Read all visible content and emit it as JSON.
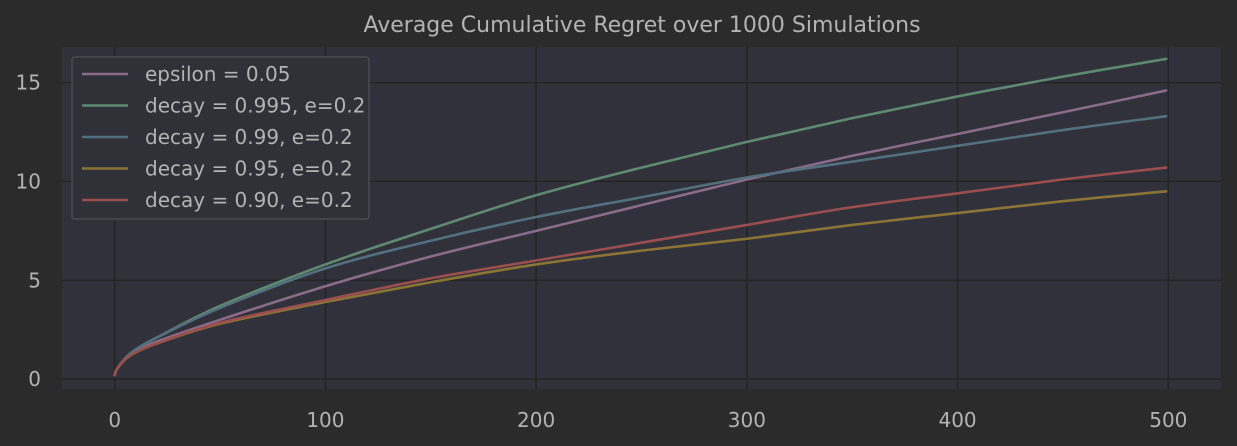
{
  "chart_data": {
    "type": "line",
    "title": "Average Cumulative Regret over 1000 Simulations",
    "xlabel": "",
    "ylabel": "",
    "xlim": [
      -25,
      525
    ],
    "ylim": [
      -0.5,
      16.8
    ],
    "xticks": [
      0,
      100,
      200,
      300,
      400,
      500
    ],
    "yticks": [
      0,
      5,
      10,
      15
    ],
    "grid": true,
    "legend_position": "top-left",
    "colors": {
      "background": "#2b2b2b",
      "plot_area": "#30313a",
      "grid": "#242424",
      "text": "#b3b3b3"
    },
    "x": [
      0,
      1,
      5,
      10,
      20,
      50,
      100,
      150,
      200,
      250,
      300,
      350,
      400,
      450,
      499
    ],
    "series": [
      {
        "name": "epsilon = 0.05",
        "color": "#8b6b8a",
        "values": [
          0.2,
          0.5,
          1.0,
          1.4,
          1.9,
          3.0,
          4.7,
          6.2,
          7.5,
          8.8,
          10.1,
          11.3,
          12.4,
          13.5,
          14.6
        ]
      },
      {
        "name": "decay = 0.995, e=0.2",
        "color": "#5e8a72",
        "values": [
          0.2,
          0.5,
          1.05,
          1.5,
          2.1,
          3.7,
          5.8,
          7.6,
          9.3,
          10.7,
          12.0,
          13.2,
          14.3,
          15.3,
          16.2
        ]
      },
      {
        "name": "decay = 0.99, e=0.2",
        "color": "#52707f",
        "values": [
          0.2,
          0.5,
          1.05,
          1.5,
          2.1,
          3.6,
          5.6,
          7.0,
          8.2,
          9.2,
          10.2,
          11.0,
          11.8,
          12.6,
          13.3
        ]
      },
      {
        "name": "decay = 0.95, e=0.2",
        "color": "#8c7435",
        "values": [
          0.2,
          0.5,
          1.0,
          1.35,
          1.8,
          2.8,
          3.9,
          4.9,
          5.8,
          6.5,
          7.1,
          7.8,
          8.4,
          9.0,
          9.5
        ]
      },
      {
        "name": "decay = 0.90, e=0.2",
        "color": "#9a4e4e",
        "values": [
          0.2,
          0.5,
          1.0,
          1.35,
          1.8,
          2.85,
          4.0,
          5.1,
          6.0,
          6.9,
          7.8,
          8.7,
          9.4,
          10.1,
          10.7
        ]
      }
    ]
  }
}
